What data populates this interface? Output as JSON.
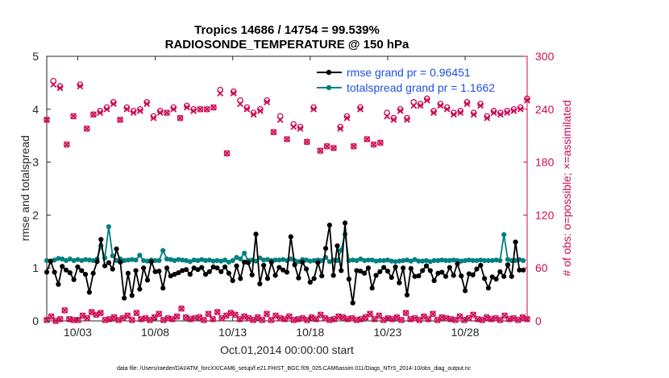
{
  "chart_data": {
    "type": "line",
    "title_line1": "Tropics 14686 / 14754 = 99.539%",
    "title_line2": "RADIOSONDE_TEMPERATURE @ 150 hPa",
    "xlabel": "Oct.01,2014 00:00:00 start",
    "ylabel": "rmse and totalspread",
    "ylabel_right": "# of obs: o=possible; ×=assimilated",
    "x_range": [
      1.0,
      32.0
    ],
    "ylim": [
      0,
      5
    ],
    "ylim_right": [
      0,
      300
    ],
    "x_tick_positions": [
      3,
      8,
      13,
      18,
      23,
      28
    ],
    "x_tick_labels": [
      "10/03",
      "10/08",
      "10/13",
      "10/18",
      "10/23",
      "10/28"
    ],
    "y_tick_labels": [
      "0",
      "1",
      "2",
      "3",
      "4",
      "5"
    ],
    "y_tick_values": [
      0,
      1,
      2,
      3,
      4,
      5
    ],
    "y_right_tick_labels": [
      "0",
      "60",
      "120",
      "180",
      "240",
      "300"
    ],
    "y_right_tick_values": [
      0,
      60,
      120,
      180,
      240,
      300
    ],
    "legend": {
      "position": "top-right",
      "entries": [
        "rmse grand pr = 0.96451",
        "totalspread grand pr = 1.1662"
      ]
    },
    "colors": {
      "rmse": "#000000",
      "spread": "#008080",
      "obs": "#cc0a55",
      "axis": "#262626",
      "legend_text": "#1f4fe0"
    },
    "time": [
      1.0,
      1.25,
      1.5,
      1.75,
      2.0,
      2.25,
      2.5,
      2.75,
      3.0,
      3.25,
      3.5,
      3.75,
      4.0,
      4.25,
      4.5,
      4.75,
      5.0,
      5.25,
      5.5,
      5.75,
      6.0,
      6.25,
      6.5,
      6.75,
      7.0,
      7.25,
      7.5,
      7.75,
      8.0,
      8.25,
      8.5,
      8.75,
      9.0,
      9.25,
      9.5,
      9.75,
      10.0,
      10.25,
      10.5,
      10.75,
      11.0,
      11.25,
      11.5,
      11.75,
      12.0,
      12.25,
      12.5,
      12.75,
      13.0,
      13.25,
      13.5,
      13.75,
      14.0,
      14.25,
      14.5,
      14.75,
      15.0,
      15.25,
      15.5,
      15.75,
      16.0,
      16.25,
      16.5,
      16.75,
      17.0,
      17.25,
      17.5,
      17.75,
      18.0,
      18.25,
      18.5,
      18.75,
      19.0,
      19.25,
      19.5,
      19.75,
      20.0,
      20.25,
      20.5,
      20.75,
      21.0,
      21.25,
      21.5,
      21.75,
      22.0,
      22.25,
      22.5,
      22.75,
      23.0,
      23.25,
      23.5,
      23.75,
      24.0,
      24.25,
      24.5,
      24.75,
      25.0,
      25.25,
      25.5,
      25.75,
      26.0,
      26.25,
      26.5,
      26.75,
      27.0,
      27.25,
      27.5,
      27.75,
      28.0,
      28.25,
      28.5,
      28.75,
      29.0,
      29.25,
      29.5,
      29.75,
      30.0,
      30.25,
      30.5,
      30.75,
      31.0,
      31.25,
      31.5,
      31.75
    ],
    "rmse": [
      0.92,
      1.13,
      0.92,
      0.69,
      1.03,
      0.96,
      0.91,
      0.78,
      1.02,
      0.95,
      0.88,
      0.54,
      0.9,
      1.12,
      1.54,
      1.04,
      1.1,
      0.98,
      1.36,
      1.11,
      0.43,
      0.9,
      0.48,
      0.95,
      0.6,
      1.0,
      0.77,
      1.12,
      0.93,
      0.94,
      0.62,
      1.0,
      0.85,
      0.88,
      0.91,
      0.95,
      0.97,
      0.88,
      1.0,
      0.97,
      1.01,
      0.88,
      0.93,
      1.02,
      1.0,
      0.93,
      1.02,
      0.9,
      0.76,
      1.04,
      0.8,
      1.11,
      1.1,
      0.87,
      1.64,
      0.7,
      1.05,
      0.8,
      1.11,
      0.86,
      1.01,
      0.96,
      0.92,
      1.59,
      1.06,
      0.81,
      1.11,
      0.98,
      0.73,
      0.8,
      1.1,
      0.85,
      1.37,
      1.81,
      0.86,
      1.42,
      0.95,
      1.85,
      0.79,
      0.34,
      0.95,
      0.94,
      0.9,
      1.0,
      0.62,
      0.86,
      0.93,
      1.01,
      0.94,
      0.82,
      1.02,
      0.72,
      1.0,
      0.49,
      0.99,
      0.84,
      0.85,
      0.95,
      1.04,
      0.95,
      0.76,
      0.9,
      0.92,
      0.84,
      1.01,
      0.86,
      1.08,
      0.85,
      0.57,
      0.89,
      0.87,
      0.98,
      1.05,
      0.8,
      0.62,
      0.83,
      0.79,
      0.93,
      0.84,
      1.06,
      0.84,
      1.49,
      0.96,
      0.96,
      0.95,
      1.04
    ],
    "spread": [
      1.14,
      1.12,
      1.15,
      1.18,
      1.17,
      1.14,
      1.17,
      1.14,
      1.16,
      1.14,
      1.16,
      1.15,
      1.14,
      1.17,
      1.42,
      1.19,
      1.78,
      1.23,
      1.14,
      1.17,
      1.14,
      1.15,
      1.16,
      1.15,
      1.24,
      1.14,
      1.13,
      1.15,
      1.14,
      1.14,
      1.33,
      1.17,
      1.16,
      1.14,
      1.16,
      1.15,
      1.14,
      1.12,
      1.15,
      1.14,
      1.16,
      1.14,
      1.15,
      1.13,
      1.14,
      1.13,
      1.15,
      1.11,
      1.14,
      1.2,
      1.17,
      1.28,
      1.14,
      1.15,
      1.13,
      1.19,
      1.15,
      1.16,
      1.14,
      1.15,
      1.15,
      1.16,
      1.14,
      1.17,
      1.14,
      1.12,
      1.16,
      1.15,
      1.13,
      1.14,
      1.15,
      1.14,
      1.2,
      1.12,
      1.15,
      1.14,
      1.34,
      1.64,
      1.14,
      1.15,
      1.14,
      1.17,
      1.14,
      1.15,
      1.15,
      1.13,
      1.14,
      1.14,
      1.15,
      1.13,
      1.12,
      1.13,
      1.14,
      1.15,
      1.13,
      1.16,
      1.13,
      1.13,
      1.14,
      1.12,
      1.14,
      1.14,
      1.15,
      1.14,
      1.14,
      1.15,
      1.14,
      1.13,
      1.14,
      1.15,
      1.14,
      1.14,
      1.15,
      1.14,
      1.14,
      1.14,
      1.15,
      1.14,
      1.63,
      1.16,
      1.14,
      1.14,
      1.16,
      1.14,
      1.23,
      1.15
    ],
    "obs_possible_top": [
      228,
      272,
      266,
      200,
      232,
      268,
      218,
      234,
      238,
      242,
      248,
      228,
      242,
      238,
      240,
      248,
      232,
      238,
      236,
      242,
      230,
      244,
      240,
      240,
      240,
      242,
      262,
      190,
      260,
      250,
      242,
      236,
      240,
      250,
      214,
      232,
      206,
      223,
      220,
      203,
      242,
      193,
      198,
      196,
      220,
      232,
      198,
      242,
      206,
      200,
      202,
      236,
      230,
      240,
      230,
      248,
      246,
      252,
      238,
      246,
      242,
      236,
      238,
      248,
      236,
      246,
      232,
      238,
      236,
      238,
      240,
      242,
      252
    ],
    "obs_assimilated_top": [
      228,
      268,
      264,
      200,
      232,
      266,
      218,
      234,
      236,
      240,
      246,
      228,
      240,
      236,
      238,
      246,
      230,
      236,
      236,
      240,
      230,
      242,
      238,
      240,
      240,
      242,
      258,
      190,
      258,
      246,
      240,
      234,
      238,
      248,
      214,
      228,
      206,
      220,
      218,
      203,
      240,
      193,
      198,
      196,
      218,
      230,
      198,
      240,
      206,
      200,
      202,
      232,
      228,
      238,
      228,
      244,
      244,
      250,
      236,
      244,
      240,
      234,
      236,
      246,
      234,
      244,
      230,
      236,
      234,
      236,
      238,
      240,
      250
    ],
    "obs_bottom": [
      1,
      5,
      0,
      2,
      12,
      2,
      1,
      1,
      6,
      3,
      10,
      7,
      9,
      1,
      2,
      4,
      1,
      3,
      6,
      1,
      9,
      2,
      3,
      1,
      4,
      8,
      1,
      3,
      2,
      5,
      14,
      4,
      2,
      3,
      4,
      1,
      8,
      2,
      10,
      3,
      6,
      9,
      7,
      2,
      5,
      3,
      1,
      4,
      1,
      8,
      1,
      6,
      3,
      2,
      5,
      1,
      2,
      3,
      1,
      4,
      2,
      7,
      3,
      1,
      2,
      5,
      4,
      2,
      3,
      1,
      2,
      4,
      8,
      2,
      6,
      1,
      3,
      2,
      4,
      1,
      9,
      2,
      3,
      1,
      5,
      2,
      8,
      1,
      4,
      3,
      2,
      1,
      5,
      1,
      3,
      7,
      2,
      1,
      4,
      2,
      3,
      1,
      6,
      2,
      3,
      1,
      4,
      2
    ]
  },
  "footer": {
    "text": "data file: /Users/raeder/DAI/ATM_forcXX/CAM6_setup/f.e21.FHIST_BGC.f09_025.CAM6assim.011/Diags_NTrS_2014-10/obs_diag_output.nc"
  }
}
